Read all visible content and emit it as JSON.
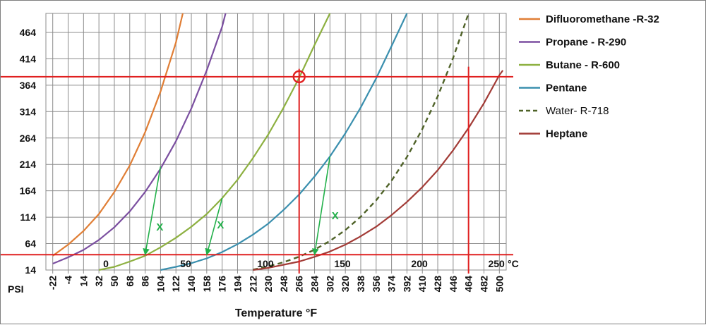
{
  "chart_data": {
    "type": "line",
    "x_axis": {
      "label": "Temperature  °F",
      "unit_label": "PSI",
      "min": -30,
      "max": 508,
      "tick_labels": [
        "-22",
        "-4",
        "14",
        "32",
        "50",
        "68",
        "86",
        "104",
        "122",
        "140",
        "158",
        "176",
        "194",
        "212",
        "230",
        "248",
        "266",
        "284",
        "302",
        "320",
        "338",
        "356",
        "374",
        "392",
        "410",
        "428",
        "446",
        "464",
        "482",
        "500"
      ]
    },
    "y_axis": {
      "min": 14,
      "max": 500,
      "tick_labels": [
        "14",
        "64",
        "114",
        "164",
        "214",
        "264",
        "314",
        "364",
        "414",
        "464"
      ]
    },
    "celsius_axis": {
      "unit_label": "°C",
      "labels": [
        {
          "text": "0",
          "f": 32
        },
        {
          "text": "50",
          "f": 122
        },
        {
          "text": "100",
          "f": 212
        },
        {
          "text": "150",
          "f": 302
        },
        {
          "text": "200",
          "f": 392
        },
        {
          "text": "250",
          "f": 482
        }
      ]
    },
    "grid": true,
    "legend_position": "right",
    "series": [
      {
        "name": "Difluoromethane -R-32",
        "color": "#E07E35",
        "dash": false,
        "legend_bold": true,
        "points": [
          [
            -22,
            41
          ],
          [
            -4,
            62
          ],
          [
            14,
            88
          ],
          [
            32,
            120
          ],
          [
            50,
            162
          ],
          [
            68,
            212
          ],
          [
            86,
            275
          ],
          [
            104,
            352
          ],
          [
            122,
            445
          ],
          [
            130,
            500
          ]
        ]
      },
      {
        "name": "Propane - R-290",
        "color": "#7B4FA0",
        "dash": false,
        "legend_bold": true,
        "points": [
          [
            -22,
            26
          ],
          [
            -4,
            38
          ],
          [
            14,
            52
          ],
          [
            32,
            71
          ],
          [
            50,
            95
          ],
          [
            68,
            125
          ],
          [
            86,
            162
          ],
          [
            104,
            206
          ],
          [
            122,
            258
          ],
          [
            140,
            320
          ],
          [
            158,
            392
          ],
          [
            176,
            475
          ],
          [
            180,
            500
          ]
        ]
      },
      {
        "name": "Butane - R-600",
        "color": "#8DB040",
        "dash": false,
        "legend_bold": true,
        "points": [
          [
            32,
            14
          ],
          [
            50,
            20
          ],
          [
            68,
            30
          ],
          [
            86,
            41
          ],
          [
            104,
            57
          ],
          [
            122,
            75
          ],
          [
            140,
            96
          ],
          [
            158,
            120
          ],
          [
            176,
            150
          ],
          [
            194,
            185
          ],
          [
            212,
            226
          ],
          [
            230,
            271
          ],
          [
            248,
            322
          ],
          [
            266,
            378
          ],
          [
            284,
            440
          ],
          [
            302,
            500
          ]
        ]
      },
      {
        "name": "Pentane",
        "color": "#3A8FAE",
        "dash": false,
        "legend_bold": true,
        "points": [
          [
            104,
            14
          ],
          [
            122,
            20
          ],
          [
            140,
            27
          ],
          [
            158,
            36
          ],
          [
            176,
            48
          ],
          [
            194,
            63
          ],
          [
            212,
            81
          ],
          [
            230,
            102
          ],
          [
            248,
            128
          ],
          [
            266,
            157
          ],
          [
            284,
            191
          ],
          [
            302,
            229
          ],
          [
            320,
            273
          ],
          [
            338,
            322
          ],
          [
            356,
            377
          ],
          [
            374,
            438
          ],
          [
            392,
            500
          ]
        ]
      },
      {
        "name": "Water- R-718",
        "color": "#4F6228",
        "dash": true,
        "legend_bold": false,
        "points": [
          [
            212,
            14.7
          ],
          [
            230,
            20.8
          ],
          [
            248,
            28.8
          ],
          [
            266,
            39.2
          ],
          [
            284,
            52.4
          ],
          [
            302,
            69.0
          ],
          [
            320,
            89.7
          ],
          [
            338,
            115
          ],
          [
            356,
            146
          ],
          [
            374,
            183
          ],
          [
            392,
            228
          ],
          [
            410,
            281
          ],
          [
            428,
            343
          ],
          [
            446,
            416
          ],
          [
            464,
            500
          ]
        ]
      },
      {
        "name": "Heptane",
        "color": "#A23B36",
        "dash": false,
        "legend_bold": true,
        "points": [
          [
            212,
            14
          ],
          [
            230,
            18
          ],
          [
            248,
            24
          ],
          [
            266,
            30
          ],
          [
            284,
            39
          ],
          [
            302,
            49
          ],
          [
            320,
            62
          ],
          [
            338,
            78
          ],
          [
            356,
            96
          ],
          [
            374,
            118
          ],
          [
            392,
            143
          ],
          [
            410,
            171
          ],
          [
            428,
            203
          ],
          [
            446,
            241
          ],
          [
            464,
            283
          ],
          [
            482,
            330
          ],
          [
            500,
            383
          ],
          [
            504,
            392
          ]
        ]
      }
    ],
    "reference_lines": {
      "color": "#E02020",
      "horizontal": [
        43,
        380
      ],
      "vertical": [
        266,
        464
      ]
    },
    "marker": {
      "x": 266,
      "y": 380,
      "color": "#E02020"
    },
    "arrows": {
      "color": "#22B04A",
      "items": [
        {
          "from": [
            104,
            210
          ],
          "to": [
            86,
            43
          ]
        },
        {
          "from": [
            176,
            150
          ],
          "to": [
            158,
            43
          ]
        },
        {
          "from": [
            302,
            229
          ],
          "to": [
            284,
            43
          ]
        }
      ]
    },
    "annotations": [
      {
        "text": "X",
        "x": 99,
        "y": 89,
        "color": "#22B04A"
      },
      {
        "text": "X",
        "x": 170,
        "y": 93,
        "color": "#22B04A"
      },
      {
        "text": "X",
        "x": 304,
        "y": 110,
        "color": "#22B04A"
      }
    ]
  }
}
